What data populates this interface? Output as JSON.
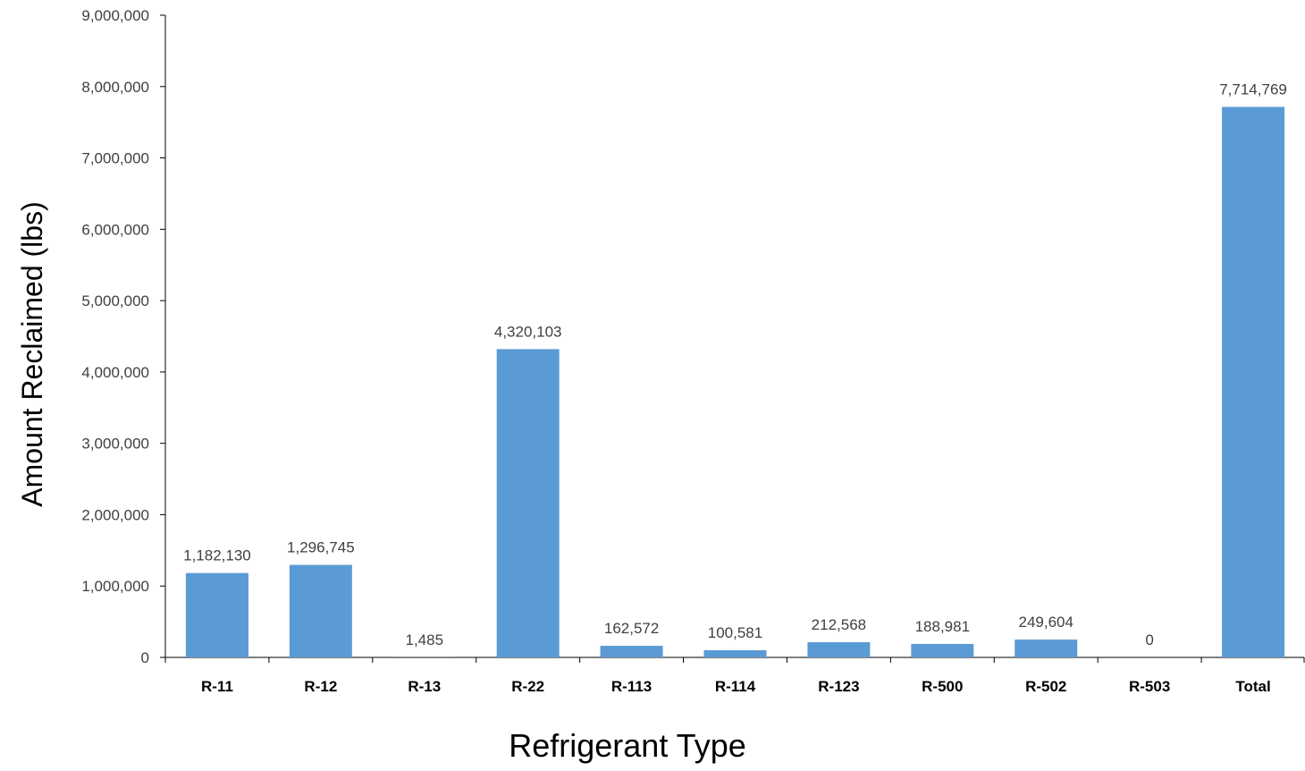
{
  "chart_data": {
    "type": "bar",
    "title": "",
    "xlabel": "Refrigerant Type",
    "ylabel": "Amount Reclaimed (lbs)",
    "categories": [
      "R-11",
      "R-12",
      "R-13",
      "R-22",
      "R-113",
      "R-114",
      "R-123",
      "R-500",
      "R-502",
      "R-503",
      "Total"
    ],
    "values": [
      1182130,
      1296745,
      1485,
      4320103,
      162572,
      100581,
      212568,
      188981,
      249604,
      0,
      7714769
    ],
    "data_labels": [
      "1,182,130",
      "1,296,745",
      "1,485",
      "4,320,103",
      "162,572",
      "100,581",
      "212,568",
      "188,981",
      "249,604",
      "0",
      "7,714,769"
    ],
    "ylim": [
      0,
      9000000
    ],
    "y_ticks": [
      0,
      1000000,
      2000000,
      3000000,
      4000000,
      5000000,
      6000000,
      7000000,
      8000000,
      9000000
    ],
    "y_tick_labels": [
      "0",
      "1,000,000",
      "2,000,000",
      "3,000,000",
      "4,000,000",
      "5,000,000",
      "6,000,000",
      "7,000,000",
      "8,000,000",
      "9,000,000"
    ],
    "grid": false,
    "legend": "none",
    "bar_color": "#5b9bd5",
    "axis_color": "#000000"
  }
}
